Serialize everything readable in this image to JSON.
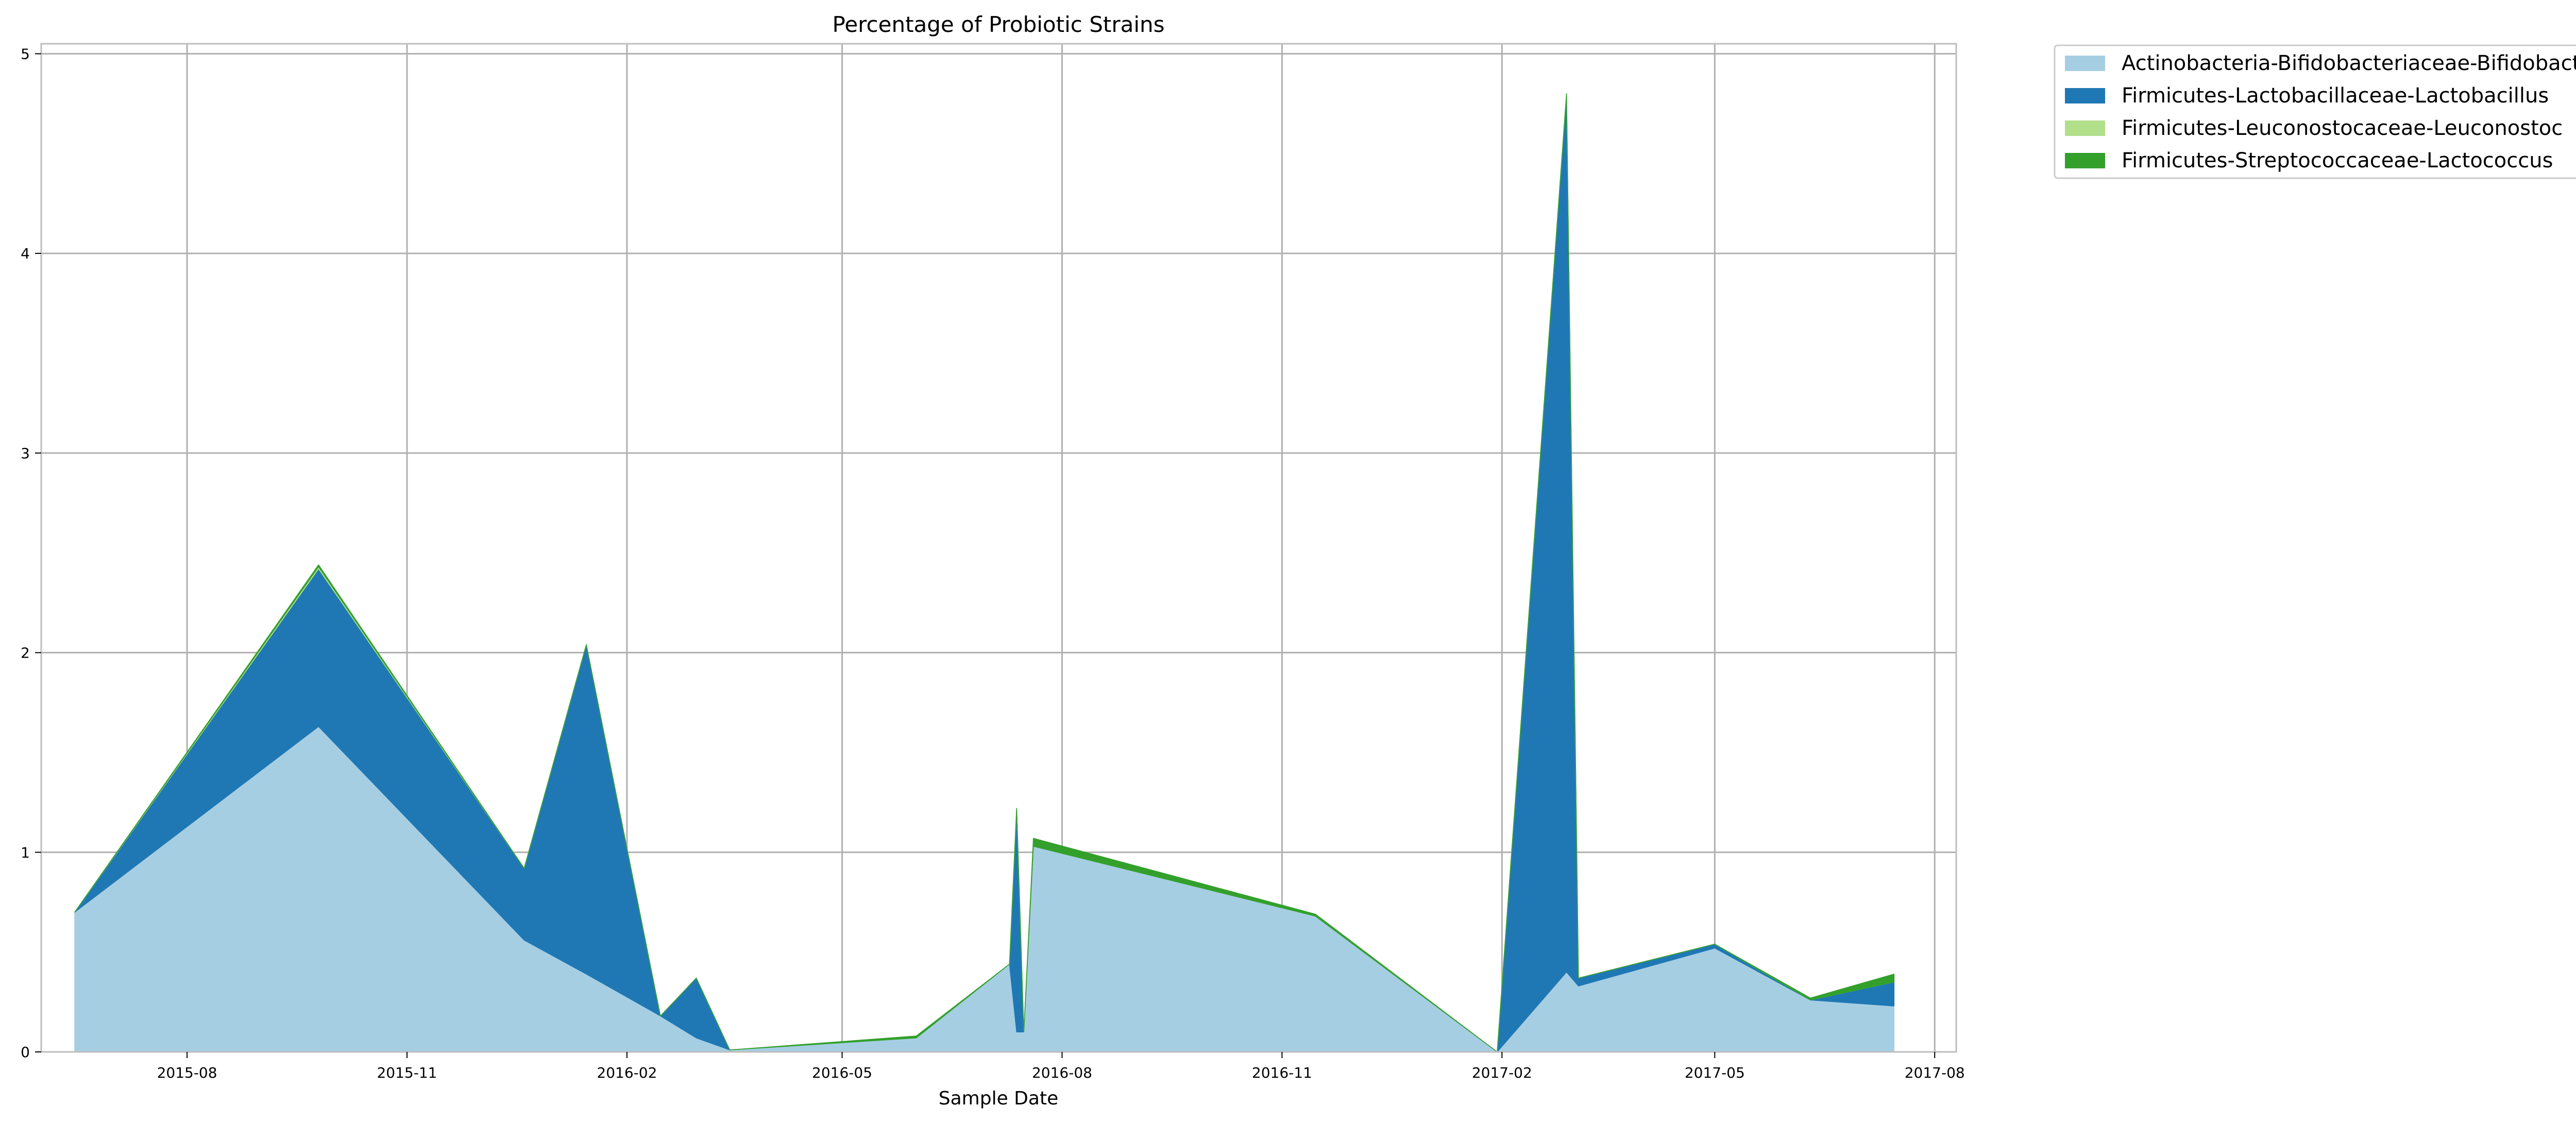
{
  "chart_data": {
    "type": "area",
    "stacked": true,
    "title": "Percentage of Probiotic Strains",
    "xlabel": "Sample Date",
    "ylabel": "",
    "xlim": [
      "2015-06-01",
      "2017-08-10"
    ],
    "ylim": [
      0,
      5.05
    ],
    "x_ticks": [
      "2015-08",
      "2015-11",
      "2016-02",
      "2016-05",
      "2016-08",
      "2016-11",
      "2017-02",
      "2017-05",
      "2017-08"
    ],
    "y_ticks": [
      0,
      1,
      2,
      3,
      4,
      5
    ],
    "grid": true,
    "legend_position": "outside-top-right",
    "x": [
      "2015-06-15",
      "2015-09-25",
      "2015-12-20",
      "2016-01-15",
      "2016-02-15",
      "2016-03-01",
      "2016-03-15",
      "2016-06-01",
      "2016-07-10",
      "2016-07-13",
      "2016-07-16",
      "2016-07-20",
      "2016-11-15",
      "2017-01-30",
      "2017-02-28",
      "2017-03-05",
      "2017-05-01",
      "2017-06-10",
      "2017-07-15"
    ],
    "series": [
      {
        "name": "Actinobacteria-Bifidobacteriaceae-Bifidobacterium",
        "color": "#a6cee3",
        "values": [
          0.7,
          1.63,
          0.56,
          0.39,
          0.18,
          0.07,
          0.01,
          0.07,
          0.44,
          0.1,
          0.1,
          1.03,
          0.68,
          0.0,
          0.4,
          0.33,
          0.52,
          0.26,
          0.23
        ]
      },
      {
        "name": "Firmicutes-Lactobacillaceae-Lactobacillus",
        "color": "#1f78b4",
        "values": [
          0.0,
          0.79,
          0.36,
          1.65,
          0.0,
          0.3,
          0.0,
          0.0,
          0.0,
          1.12,
          0.0,
          0.0,
          0.0,
          0.0,
          4.4,
          0.04,
          0.02,
          0.0,
          0.12
        ]
      },
      {
        "name": "Firmicutes-Leuconostocaceae-Leuconostoc",
        "color": "#b2df8a",
        "values": [
          0.0,
          0.01,
          0.0,
          0.0,
          0.0,
          0.0,
          0.0,
          0.0,
          0.0,
          0.0,
          0.0,
          0.0,
          0.0,
          0.0,
          0.0,
          0.0,
          0.0,
          0.0,
          0.0
        ]
      },
      {
        "name": "Firmicutes-Streptococcaceae-Lactococcus",
        "color": "#33a02c",
        "values": [
          0.0,
          0.01,
          0.0,
          0.0,
          0.0,
          0.0,
          0.0,
          0.01,
          0.0,
          0.0,
          0.0,
          0.04,
          0.01,
          0.0,
          0.0,
          0.0,
          0.0,
          0.01,
          0.04
        ]
      }
    ]
  }
}
